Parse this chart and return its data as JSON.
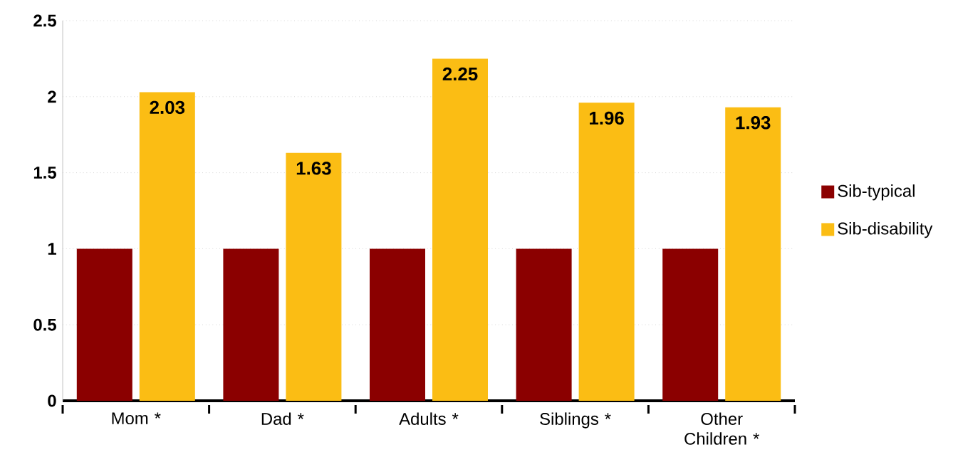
{
  "chart_data": {
    "type": "bar",
    "categories": [
      "Mom *",
      "Dad *",
      "Adults *",
      "Siblings *",
      "Other Children *"
    ],
    "series": [
      {
        "name": "Sib-typical",
        "color": "#8b0000",
        "values": [
          1,
          1,
          1,
          1,
          1
        ]
      },
      {
        "name": "Sib-disability",
        "color": "#fbbd14",
        "values": [
          2.03,
          1.63,
          2.25,
          1.96,
          1.93
        ],
        "value_labels": [
          "2.03",
          "1.63",
          "2.25",
          "1.96",
          "1.93"
        ]
      }
    ],
    "ylim": [
      0,
      2.5
    ],
    "yticks": [
      0,
      0.5,
      1,
      1.5,
      2,
      2.5
    ],
    "grid": "y",
    "legend": "right"
  }
}
